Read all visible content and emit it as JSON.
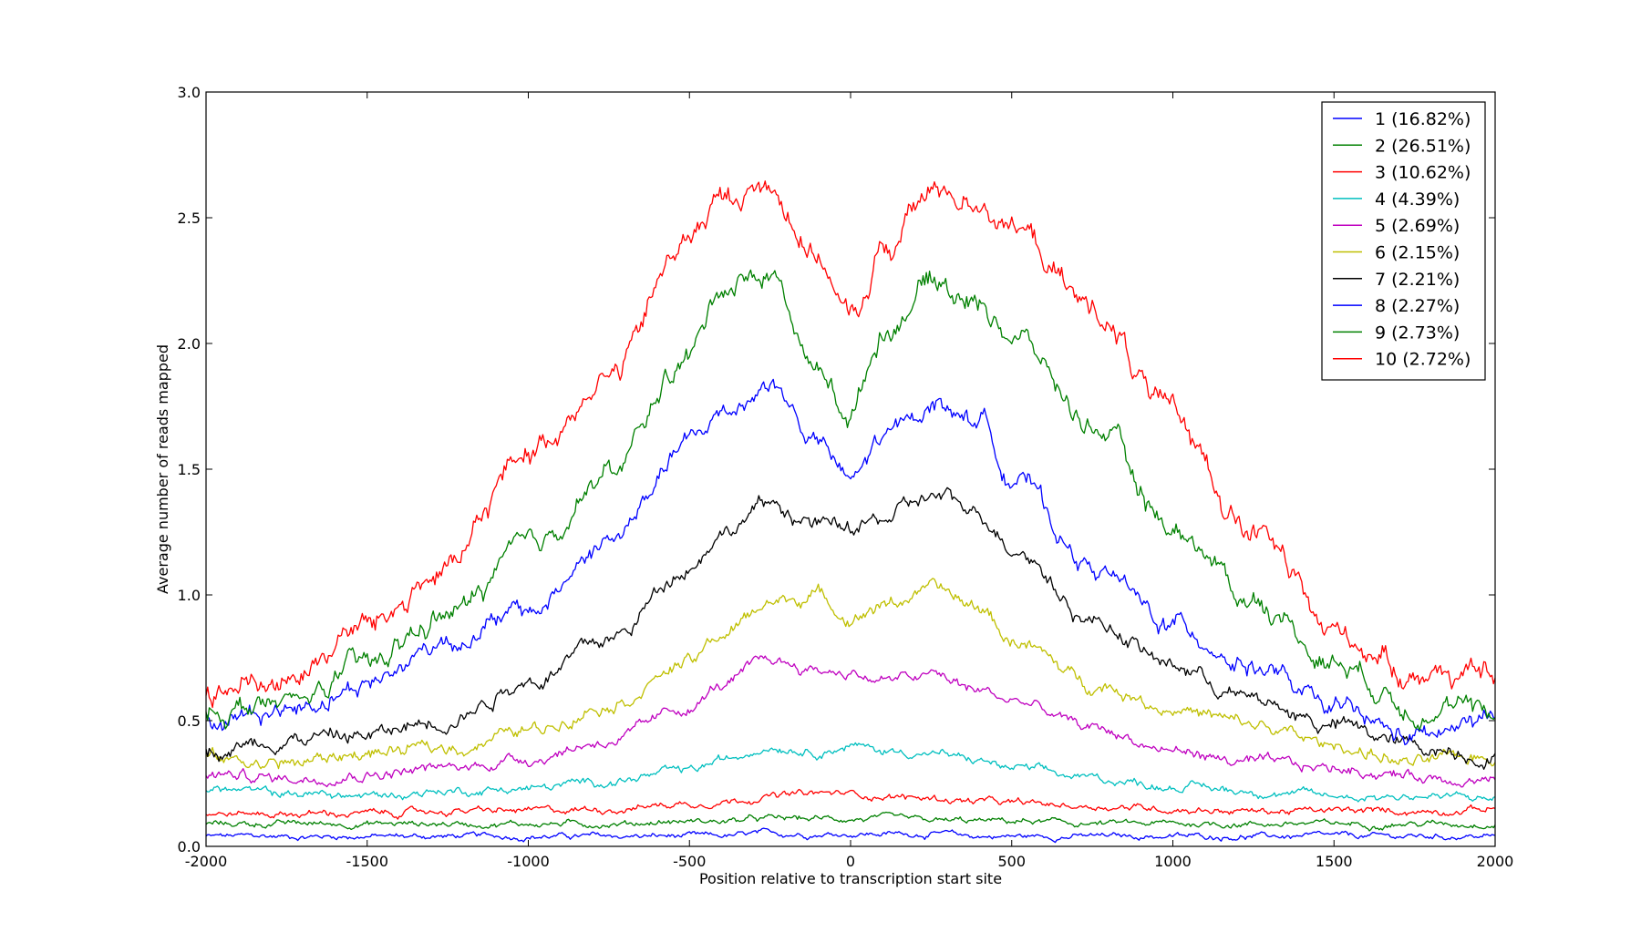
{
  "chart_data": {
    "type": "line",
    "title": "",
    "xlabel": "Position relative to transcription start site",
    "ylabel": "Average number of reads mapped",
    "xlim": [
      -2000,
      2000
    ],
    "ylim": [
      0.0,
      3.0
    ],
    "xticks": [
      -2000,
      -1500,
      -1000,
      -500,
      0,
      500,
      1000,
      1500,
      2000
    ],
    "xtick_labels": [
      "-2000",
      "-1500",
      "-1000",
      "-500",
      "0",
      "500",
      "1000",
      "1500",
      "2000"
    ],
    "yticks": [
      0.0,
      0.5,
      1.0,
      1.5,
      2.0,
      2.5,
      3.0
    ],
    "ytick_labels": [
      "0.0",
      "0.5",
      "1.0",
      "1.5",
      "2.0",
      "2.5",
      "3.0"
    ],
    "grid": false,
    "legend_position": "top-right",
    "x": [
      -2000,
      -1750,
      -1500,
      -1250,
      -1000,
      -750,
      -500,
      -400,
      -250,
      -100,
      0,
      100,
      250,
      400,
      500,
      750,
      1000,
      1250,
      1500,
      1750,
      2000
    ],
    "series": [
      {
        "name": "1 (16.82%)",
        "color": "#0000ff",
        "values": [
          0.04,
          0.04,
          0.04,
          0.04,
          0.04,
          0.04,
          0.04,
          0.04,
          0.05,
          0.05,
          0.05,
          0.05,
          0.05,
          0.04,
          0.04,
          0.04,
          0.04,
          0.04,
          0.04,
          0.04,
          0.04
        ]
      },
      {
        "name": "2 (26.51%)",
        "color": "#008000",
        "values": [
          0.09,
          0.09,
          0.09,
          0.09,
          0.09,
          0.09,
          0.1,
          0.1,
          0.11,
          0.11,
          0.11,
          0.11,
          0.1,
          0.1,
          0.1,
          0.09,
          0.09,
          0.09,
          0.09,
          0.09,
          0.09
        ]
      },
      {
        "name": "3 (10.62%)",
        "color": "#ff0000",
        "values": [
          0.13,
          0.13,
          0.13,
          0.14,
          0.14,
          0.15,
          0.17,
          0.18,
          0.2,
          0.21,
          0.21,
          0.2,
          0.19,
          0.18,
          0.17,
          0.16,
          0.15,
          0.14,
          0.14,
          0.14,
          0.15
        ]
      },
      {
        "name": "4 (4.39%)",
        "color": "#00bfbf",
        "values": [
          0.23,
          0.21,
          0.2,
          0.22,
          0.23,
          0.26,
          0.3,
          0.34,
          0.4,
          0.38,
          0.4,
          0.38,
          0.37,
          0.34,
          0.31,
          0.27,
          0.24,
          0.22,
          0.2,
          0.2,
          0.19
        ]
      },
      {
        "name": "5 (2.69%)",
        "color": "#bf00bf",
        "values": [
          0.29,
          0.27,
          0.29,
          0.31,
          0.35,
          0.42,
          0.55,
          0.64,
          0.74,
          0.7,
          0.69,
          0.66,
          0.68,
          0.62,
          0.58,
          0.47,
          0.38,
          0.33,
          0.31,
          0.28,
          0.27
        ]
      },
      {
        "name": "6 (2.15%)",
        "color": "#bfbf00",
        "values": [
          0.35,
          0.33,
          0.37,
          0.39,
          0.46,
          0.57,
          0.73,
          0.84,
          0.97,
          1.0,
          0.91,
          0.96,
          1.02,
          0.95,
          0.82,
          0.65,
          0.55,
          0.48,
          0.4,
          0.33,
          0.36
        ]
      },
      {
        "name": "7 (2.21%)",
        "color": "#000000",
        "values": [
          0.38,
          0.43,
          0.44,
          0.51,
          0.66,
          0.82,
          1.12,
          1.25,
          1.36,
          1.28,
          1.26,
          1.3,
          1.39,
          1.33,
          1.2,
          0.9,
          0.72,
          0.58,
          0.48,
          0.4,
          0.36
        ]
      },
      {
        "name": "8 (2.27%)",
        "color": "#0000ff",
        "values": [
          0.5,
          0.55,
          0.65,
          0.82,
          0.93,
          1.21,
          1.6,
          1.72,
          1.84,
          1.6,
          1.45,
          1.62,
          1.76,
          1.7,
          1.48,
          1.11,
          0.88,
          0.72,
          0.54,
          0.43,
          0.5
        ]
      },
      {
        "name": "9 (2.73%)",
        "color": "#008000",
        "values": [
          0.55,
          0.56,
          0.72,
          0.92,
          1.18,
          1.48,
          1.95,
          2.24,
          2.28,
          1.88,
          1.72,
          2.05,
          2.25,
          2.16,
          2.04,
          1.68,
          1.27,
          0.98,
          0.74,
          0.56,
          0.52
        ]
      },
      {
        "name": "10 (2.72%)",
        "color": "#ff0000",
        "values": [
          0.62,
          0.67,
          0.88,
          1.1,
          1.58,
          1.87,
          2.42,
          2.57,
          2.62,
          2.35,
          2.08,
          2.36,
          2.6,
          2.58,
          2.46,
          2.14,
          1.7,
          1.25,
          0.85,
          0.7,
          0.66
        ]
      }
    ]
  }
}
